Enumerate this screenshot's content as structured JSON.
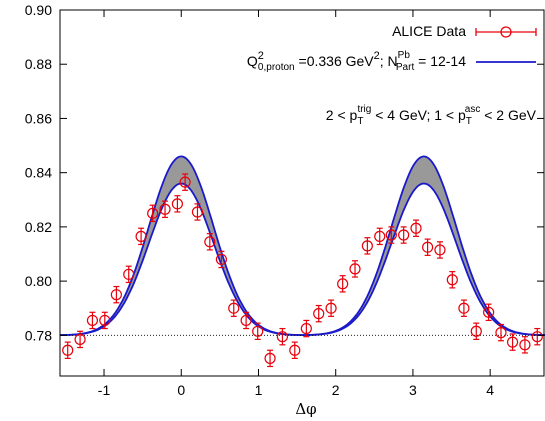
{
  "chart_data": {
    "type": "scatter",
    "title": "",
    "xlabel": "Δφ",
    "ylabel": "",
    "xlim": [
      -1.57,
      4.71
    ],
    "ylim": [
      0.765,
      0.9
    ],
    "x_ticks": [
      -1,
      0,
      1,
      2,
      3,
      4
    ],
    "y_ticks": [
      0.78,
      0.8,
      0.82,
      0.84,
      0.86,
      0.88,
      0.9
    ],
    "x_tick_labels": [
      "-1",
      "0",
      "1",
      "2",
      "3",
      "4"
    ],
    "y_tick_labels": [
      "0.78",
      "0.80",
      "0.82",
      "0.84",
      "0.86",
      "0.88",
      "0.90"
    ],
    "legend_position": "top-right",
    "legend": [
      {
        "label": "ALICE Data",
        "kind": "points",
        "color": "#e8000b"
      },
      {
        "label_main": "Q",
        "label_sup": "2",
        "label_sub": "0,proton",
        "label_rest1": " =0.336 GeV",
        "label_sup2": "2",
        "label_rest2": "; N",
        "label_sup3": "Pb",
        "label_sub3": "Part",
        "label_rest3": " = 12-14",
        "kind": "line",
        "color": "#1a1acc"
      }
    ],
    "annotation": {
      "part1": "2 < p",
      "sub1": "T",
      "sup1": "trig",
      "part2": " < 4 GeV; 1 < p",
      "sub2": "T",
      "sup2": "asc",
      "part3": " < 2 GeV"
    },
    "baseline": 0.78,
    "series": [
      {
        "name": "ALICE Data",
        "color": "#e8000b",
        "x": [
          -1.47,
          -1.31,
          -1.15,
          -0.99,
          -0.84,
          -0.68,
          -0.52,
          -0.37,
          -0.21,
          -0.05,
          0.05,
          0.21,
          0.37,
          0.52,
          0.68,
          0.84,
          0.99,
          1.15,
          1.31,
          1.47,
          1.62,
          1.78,
          1.94,
          2.09,
          2.25,
          2.41,
          2.57,
          2.72,
          2.88,
          3.04,
          3.19,
          3.35,
          3.51,
          3.66,
          3.82,
          3.98,
          4.14,
          4.29,
          4.45,
          4.61
        ],
        "y": [
          0.7745,
          0.7785,
          0.7855,
          0.7855,
          0.795,
          0.8025,
          0.8165,
          0.825,
          0.8265,
          0.8285,
          0.8365,
          0.8255,
          0.8145,
          0.808,
          0.79,
          0.7855,
          0.7815,
          0.7715,
          0.7795,
          0.7745,
          0.7825,
          0.788,
          0.79,
          0.799,
          0.8045,
          0.813,
          0.8165,
          0.817,
          0.817,
          0.8195,
          0.8125,
          0.8115,
          0.8005,
          0.79,
          0.7815,
          0.7885,
          0.781,
          0.7775,
          0.7765,
          0.7795
        ],
        "yerr": [
          0.003,
          0.003,
          0.003,
          0.003,
          0.003,
          0.003,
          0.003,
          0.003,
          0.003,
          0.003,
          0.003,
          0.003,
          0.003,
          0.003,
          0.003,
          0.003,
          0.003,
          0.003,
          0.003,
          0.003,
          0.003,
          0.003,
          0.003,
          0.003,
          0.003,
          0.003,
          0.003,
          0.003,
          0.003,
          0.003,
          0.003,
          0.003,
          0.003,
          0.003,
          0.003,
          0.003,
          0.003,
          0.003,
          0.003,
          0.003
        ]
      },
      {
        "name": "Q0,proton^2 = 0.336 GeV^2; NPart^Pb = 12-14",
        "color": "#1a1acc",
        "kind": "band",
        "band_color": "#999999",
        "model": "two gaussian peaks centered at 0 and π over baseline",
        "upper_peak": 0.846,
        "lower_peak": 0.836,
        "baseline": 0.78,
        "peak_centers": [
          0,
          3.1416
        ],
        "peak_width": 0.42
      }
    ]
  }
}
